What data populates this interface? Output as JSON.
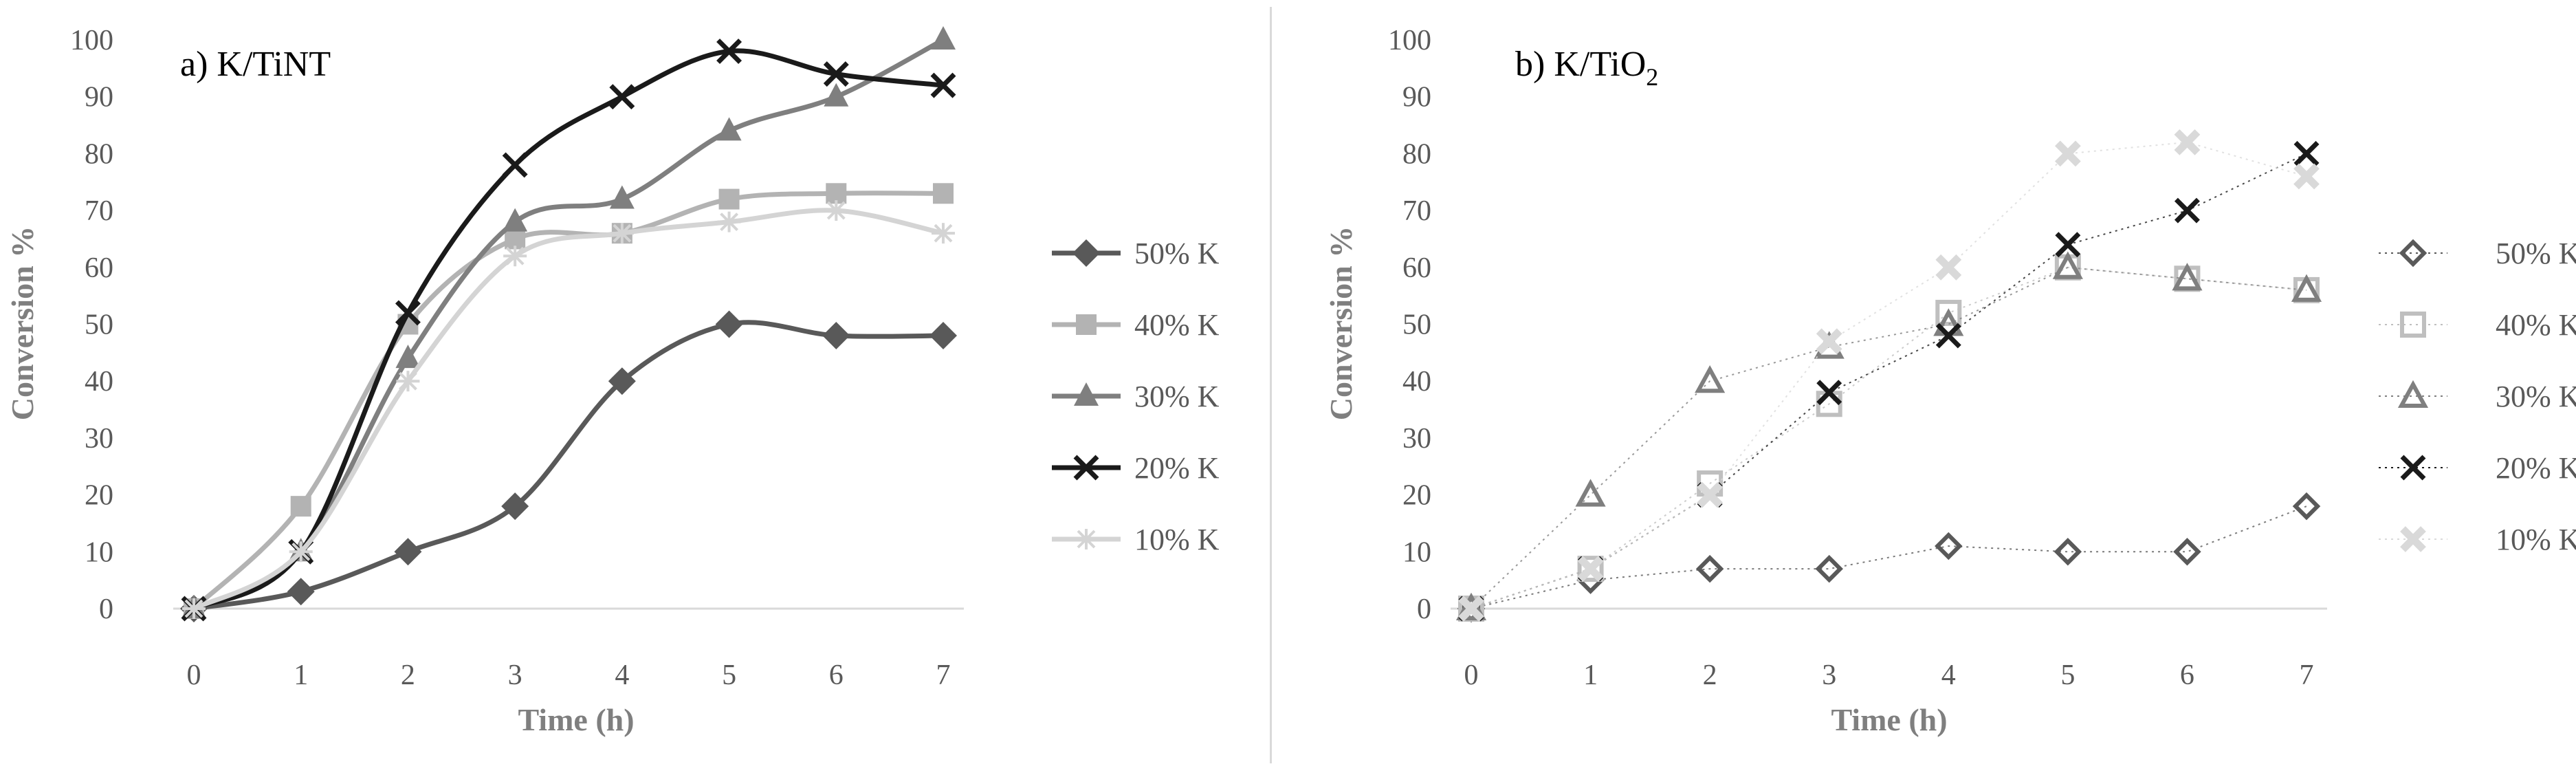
{
  "chart_data": [
    {
      "type": "line",
      "panel_title": "a) K/TiNT",
      "xlabel": "Time (h)",
      "ylabel": "Conversion %",
      "x": [
        0,
        1,
        2,
        3,
        4,
        5,
        6,
        7
      ],
      "xlim": [
        0,
        7
      ],
      "ylim": [
        0,
        100
      ],
      "y_ticks": [
        0,
        10,
        20,
        30,
        40,
        50,
        60,
        70,
        80,
        90,
        100
      ],
      "grid": false,
      "smooth": true,
      "legend_position": "right",
      "series": [
        {
          "name": "50% K",
          "values": [
            0,
            3,
            10,
            18,
            40,
            50,
            48,
            48
          ],
          "color": "#595959",
          "marker": "diamond"
        },
        {
          "name": "40% K",
          "values": [
            0,
            18,
            50,
            65,
            66,
            72,
            73,
            73
          ],
          "color": "#b3b3b3",
          "marker": "square"
        },
        {
          "name": "30% K",
          "values": [
            0,
            10,
            44,
            68,
            72,
            84,
            90,
            100
          ],
          "color": "#7f7f7f",
          "marker": "triangle"
        },
        {
          "name": "20% K",
          "values": [
            0,
            10,
            52,
            78,
            90,
            98,
            94,
            92
          ],
          "color": "#1a1a1a",
          "marker": "x"
        },
        {
          "name": "10% K",
          "values": [
            0,
            10,
            40,
            62,
            66,
            68,
            70,
            66
          ],
          "color": "#d4d4d4",
          "marker": "star"
        }
      ]
    },
    {
      "type": "scatter",
      "panel_title": "b) K/TiO",
      "panel_title_subscript": "2",
      "xlabel": "Time (h)",
      "ylabel": "Conversion %",
      "x": [
        0,
        1,
        2,
        3,
        4,
        5,
        6,
        7
      ],
      "xlim": [
        0,
        7
      ],
      "ylim": [
        0,
        100
      ],
      "y_ticks": [
        0,
        10,
        20,
        30,
        40,
        50,
        60,
        70,
        80,
        90,
        100
      ],
      "grid": false,
      "legend_position": "right",
      "series": [
        {
          "name": "50% K",
          "values": [
            0,
            5,
            7,
            7,
            11,
            10,
            10,
            18
          ],
          "color": "#595959",
          "marker": "diamond-open"
        },
        {
          "name": "40% K",
          "values": [
            0,
            7,
            22,
            36,
            52,
            60,
            58,
            56
          ],
          "color": "#bfbfbf",
          "marker": "square-open"
        },
        {
          "name": "30% K",
          "values": [
            0,
            20,
            40,
            46,
            50,
            60,
            58,
            56
          ],
          "color": "#7f7f7f",
          "marker": "triangle-open"
        },
        {
          "name": "20% K",
          "values": [
            0,
            7,
            20,
            38,
            48,
            64,
            70,
            80
          ],
          "color": "#1a1a1a",
          "marker": "x"
        },
        {
          "name": "10% K",
          "values": [
            0,
            7,
            20,
            47,
            60,
            80,
            82,
            76
          ],
          "color": "#d9d9d9",
          "marker": "x-bold"
        }
      ]
    }
  ]
}
